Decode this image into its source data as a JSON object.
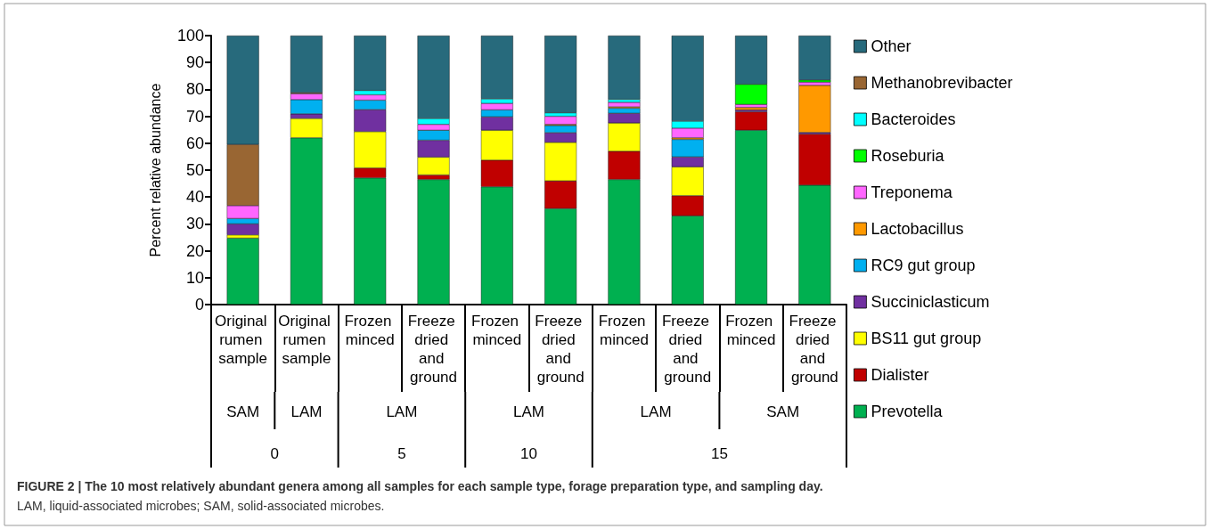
{
  "chart_data": {
    "type": "bar",
    "stacked": true,
    "title": "FIGURE 2 | The 10 most relatively abundant genera among all samples for each sample type, forage preparation type, and sampling day.",
    "ylabel": "Percent relative abundance",
    "categories": [
      "Original rumen sample",
      "Original rumen sample",
      "Frozen minced",
      "Freeze dried and ground",
      "Frozen minced",
      "Freeze dried and ground",
      "Frozen minced",
      "Freeze dried and ground",
      "Frozen minced",
      "Freeze dried and ground"
    ],
    "annotations": [
      "SAM",
      "LAM",
      "LAM",
      "LAM",
      "LAM",
      "SAM",
      "0",
      "5",
      "10",
      "15",
      "LAM, liquid-associated microbes; SAM, solid-associated microbes."
    ],
    "ylim": [
      0,
      100
    ],
    "yticks": [
      0,
      10,
      20,
      30,
      40,
      50,
      60,
      70,
      80,
      90,
      100
    ],
    "grid": false,
    "legend": "right",
    "series": [
      {
        "name": "Prevotella",
        "color": "#00b050",
        "values": [
          24.7,
          62,
          47.1,
          46.5,
          43.8,
          35.7,
          46.5,
          33,
          64.8,
          44.4
        ]
      },
      {
        "name": "Dialister",
        "color": "#c00000",
        "values": [
          null,
          null,
          3.7,
          1.7,
          9.9,
          10.3,
          10.5,
          7.5,
          6.9,
          19
        ]
      },
      {
        "name": "BS11 gut group",
        "color": "#ffff00",
        "values": [
          1.2,
          7.2,
          13.5,
          6.6,
          11.1,
          14.3,
          10.5,
          10.7,
          null,
          null
        ]
      },
      {
        "name": "Succiniclasticum",
        "color": "#7030a0",
        "values": [
          4.1,
          1.7,
          8.2,
          6.3,
          5,
          3.6,
          3.6,
          3.7,
          0.7,
          0.6
        ]
      },
      {
        "name": "RC9 gut group",
        "color": "#00b0f0",
        "values": [
          2,
          5.3,
          3.5,
          3.7,
          2.6,
          2.7,
          1.9,
          6.5,
          null,
          null
        ]
      },
      {
        "name": "Lactobacillus",
        "color": "#ff9900",
        "values": [
          null,
          null,
          null,
          null,
          null,
          0.4,
          0.5,
          0.6,
          0.9,
          17.5
        ]
      },
      {
        "name": "Treponema",
        "color": "#ff66ff",
        "values": [
          4.8,
          2.2,
          2,
          2.2,
          2.4,
          3,
          1.7,
          3.6,
          1.1,
          1.2
        ]
      },
      {
        "name": "Roseburia",
        "color": "#00ff00",
        "values": [
          null,
          null,
          null,
          null,
          null,
          null,
          null,
          null,
          7.5,
          0.8
        ]
      },
      {
        "name": "Bacteroides",
        "color": "#00ffff",
        "values": [
          null,
          null,
          1.6,
          2.2,
          1.7,
          1.3,
          1.1,
          2.6,
          null,
          null
        ]
      },
      {
        "name": "Methanobrevibacter",
        "color": "#996633",
        "values": [
          22.7,
          0.4,
          null,
          null,
          null,
          null,
          null,
          null,
          null,
          null
        ]
      },
      {
        "name": "Other",
        "color": "#276a7c",
        "values": [
          40.5,
          21.2,
          20.4,
          30.8,
          23.5,
          28.7,
          23.7,
          31.8,
          18.1,
          16.5
        ]
      }
    ]
  }
}
